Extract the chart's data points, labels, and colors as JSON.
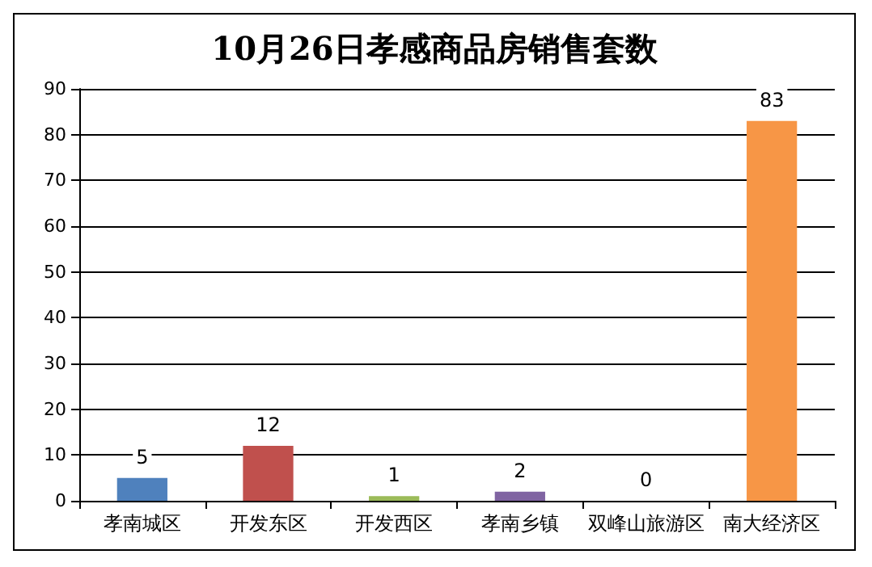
{
  "chart_data": {
    "type": "bar",
    "title": "10月26日孝感商品房销售套数",
    "categories": [
      "孝南城区",
      "开发东区",
      "开发西区",
      "孝南乡镇",
      "双峰山旅游区",
      "南大经济区"
    ],
    "values": [
      5,
      12,
      1,
      2,
      0,
      83
    ],
    "colors": [
      "#4f81bd",
      "#c0504d",
      "#9bbb59",
      "#8064a2",
      "#4bacc6",
      "#f79646"
    ],
    "ylim": [
      0,
      90
    ],
    "yticks": [
      0,
      10,
      20,
      30,
      40,
      50,
      60,
      70,
      80,
      90
    ],
    "grid": "y",
    "data_labels": true
  }
}
